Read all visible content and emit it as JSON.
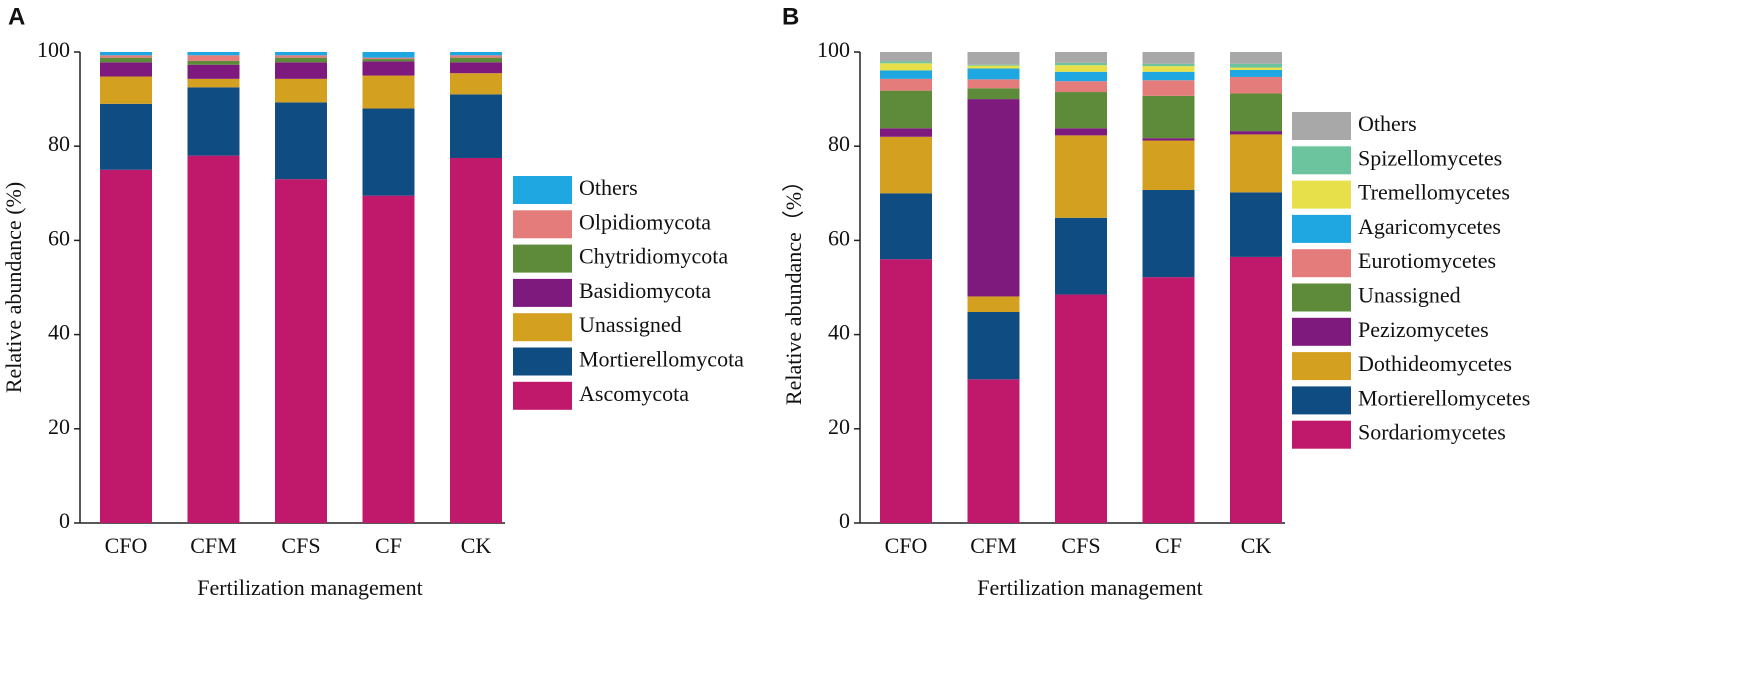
{
  "chart_data": [
    {
      "type": "stacked_bar",
      "label": "A",
      "ylabel": "Relative abundance (%)",
      "xlabel": "Fertilization management",
      "categories": [
        "CFO",
        "CFM",
        "CFS",
        "CF",
        "CK"
      ],
      "ylim": [
        0,
        100
      ],
      "yticks": [
        0,
        20,
        40,
        60,
        80,
        100
      ],
      "series": [
        {
          "name": "Ascomycota",
          "color": "#c0186a",
          "values": [
            75,
            78,
            73,
            69.5,
            77.5
          ]
        },
        {
          "name": "Mortierellomycota",
          "color": "#0f4c81",
          "values": [
            14,
            14.5,
            16.3,
            18.5,
            13.5
          ]
        },
        {
          "name": "Unassigned",
          "color": "#d4a020",
          "values": [
            5.8,
            1.8,
            5,
            7,
            4.5
          ]
        },
        {
          "name": "Basidiomycota",
          "color": "#7e1a7e",
          "values": [
            3,
            3,
            3.5,
            3,
            2.3
          ]
        },
        {
          "name": "Chytridiomycota",
          "color": "#5e8b3a",
          "values": [
            1,
            0.8,
            1,
            0.5,
            1
          ]
        },
        {
          "name": "Olpidiomycota",
          "color": "#e57c7c",
          "values": [
            0.5,
            1.2,
            0.5,
            0.3,
            0.5
          ]
        },
        {
          "name": "Others",
          "color": "#1ea7e0",
          "values": [
            0.7,
            0.7,
            0.7,
            1.2,
            0.7
          ]
        }
      ]
    },
    {
      "type": "stacked_bar",
      "label": "B",
      "ylabel": "Relative abundance（%）",
      "xlabel": "Fertilization management",
      "categories": [
        "CFO",
        "CFM",
        "CFS",
        "CF",
        "CK"
      ],
      "ylim": [
        0,
        100
      ],
      "yticks": [
        0,
        20,
        40,
        60,
        80,
        100
      ],
      "series": [
        {
          "name": "Sordariomycetes",
          "color": "#c0186a",
          "values": [
            56,
            30.5,
            48.5,
            52.2,
            56.5
          ]
        },
        {
          "name": "Mortierellomycetes",
          "color": "#0f4c81",
          "values": [
            14,
            14.3,
            16.3,
            18.5,
            13.7
          ]
        },
        {
          "name": "Dothideomycetes",
          "color": "#d4a020",
          "values": [
            12,
            3.3,
            17.5,
            10.5,
            12.3
          ]
        },
        {
          "name": "Pezizomycetes",
          "color": "#7e1a7e",
          "values": [
            1.8,
            41.9,
            1.5,
            0.5,
            0.7
          ]
        },
        {
          "name": "Unassigned",
          "color": "#5e8b3a",
          "values": [
            8,
            2.3,
            7.7,
            9,
            8
          ]
        },
        {
          "name": "Eurotiomycetes",
          "color": "#e57c7c",
          "values": [
            2.5,
            1.9,
            2.3,
            3.3,
            3.5
          ]
        },
        {
          "name": "Agaricomycetes",
          "color": "#1ea7e0",
          "values": [
            1.8,
            2.3,
            2,
            1.8,
            1.5
          ]
        },
        {
          "name": "Tremellomycetes",
          "color": "#e8e04a",
          "values": [
            1.5,
            0.6,
            1.4,
            1.2,
            0.5
          ]
        },
        {
          "name": "Spizellomycetes",
          "color": "#6cc49f",
          "values": [
            0.4,
            0.2,
            0.5,
            0.5,
            0.8
          ]
        },
        {
          "name": "Others",
          "color": "#a8a8a8",
          "values": [
            2,
            2.7,
            2.3,
            2.5,
            2.5
          ]
        }
      ]
    }
  ]
}
